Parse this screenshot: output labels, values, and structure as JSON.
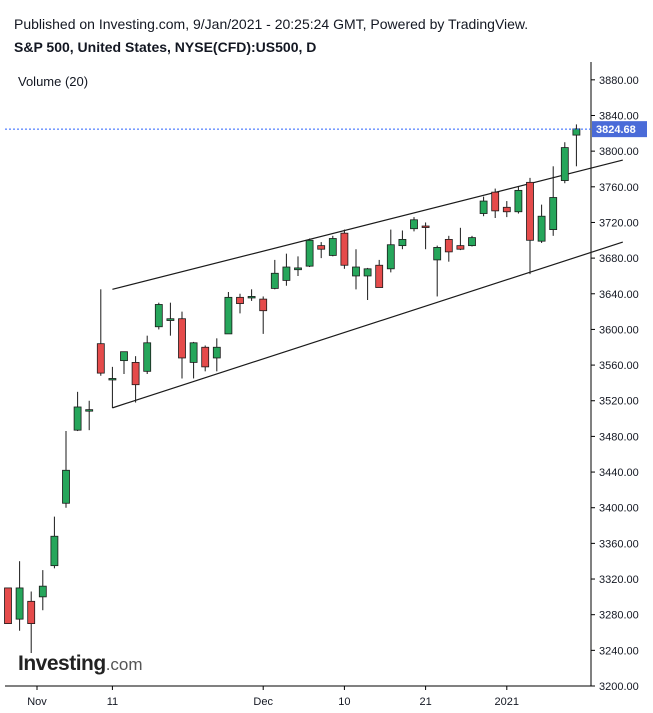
{
  "header": {
    "published": "Published on Investing.com, 9/Jan/2021 - 20:25:24 GMT, Powered by TradingView.",
    "instrument": "S&P 500, United States, NYSE(CFD):US500, D"
  },
  "logo": {
    "brand": "Investing",
    "suffix": ".com"
  },
  "colors": {
    "up": "#26a65b",
    "down": "#e54b4b",
    "last_price_tag": "#4a6bd8",
    "last_price_line": "#2962ff"
  },
  "chart_data": {
    "type": "candlestick",
    "indicator_label": "Volume (20)",
    "yaxis": {
      "range": [
        3200,
        3900
      ],
      "ticks": [
        3200,
        3240,
        3280,
        3320,
        3360,
        3400,
        3440,
        3480,
        3520,
        3560,
        3600,
        3640,
        3680,
        3720,
        3760,
        3800,
        3840,
        3880
      ],
      "tick_labels": [
        "3200.00",
        "3240.00",
        "3280.00",
        "3320.00",
        "3360.00",
        "3400.00",
        "3440.00",
        "3480.00",
        "3520.00",
        "3560.00",
        "3600.00",
        "3640.00",
        "3680.00",
        "3720.00",
        "3760.00",
        "3800.00",
        "3840.00",
        "3880.00"
      ]
    },
    "xaxis": {
      "labels": [
        {
          "text": "Nov",
          "index": 2.5
        },
        {
          "text": "11",
          "index": 9
        },
        {
          "text": "Dec",
          "index": 22
        },
        {
          "text": "10",
          "index": 29
        },
        {
          "text": "21",
          "index": 36
        },
        {
          "text": "2021",
          "index": 43
        }
      ]
    },
    "last_price": {
      "value": 3824.68,
      "label": "3824.68"
    },
    "candles": [
      {
        "o": 3310,
        "h": 3310,
        "l": 3270,
        "c": 3270
      },
      {
        "o": 3275,
        "h": 3340,
        "l": 3262,
        "c": 3310
      },
      {
        "o": 3295,
        "h": 3306,
        "l": 3237,
        "c": 3270
      },
      {
        "o": 3300,
        "h": 3330,
        "l": 3285,
        "c": 3312
      },
      {
        "o": 3335,
        "h": 3390,
        "l": 3332,
        "c": 3368
      },
      {
        "o": 3405,
        "h": 3486,
        "l": 3400,
        "c": 3442
      },
      {
        "o": 3487,
        "h": 3530,
        "l": 3486,
        "c": 3513
      },
      {
        "o": 3509,
        "h": 3520,
        "l": 3487,
        "c": 3510
      },
      {
        "o": 3584,
        "h": 3645,
        "l": 3548,
        "c": 3551
      },
      {
        "o": 3545,
        "h": 3558,
        "l": 3512,
        "c": 3545
      },
      {
        "o": 3565,
        "h": 3575,
        "l": 3550,
        "c": 3575
      },
      {
        "o": 3563,
        "h": 3570,
        "l": 3518,
        "c": 3538
      },
      {
        "o": 3553,
        "h": 3593,
        "l": 3550,
        "c": 3585
      },
      {
        "o": 3603,
        "h": 3630,
        "l": 3600,
        "c": 3628
      },
      {
        "o": 3610,
        "h": 3630,
        "l": 3593,
        "c": 3612
      },
      {
        "o": 3612,
        "h": 3620,
        "l": 3545,
        "c": 3568
      },
      {
        "o": 3563,
        "h": 3586,
        "l": 3545,
        "c": 3585
      },
      {
        "o": 3580,
        "h": 3582,
        "l": 3553,
        "c": 3558
      },
      {
        "o": 3568,
        "h": 3590,
        "l": 3553,
        "c": 3580
      },
      {
        "o": 3595,
        "h": 3642,
        "l": 3595,
        "c": 3636
      },
      {
        "o": 3636,
        "h": 3640,
        "l": 3618,
        "c": 3629
      },
      {
        "o": 3636,
        "h": 3645,
        "l": 3632,
        "c": 3637
      },
      {
        "o": 3634,
        "h": 3637,
        "l": 3595,
        "c": 3621
      },
      {
        "o": 3646,
        "h": 3678,
        "l": 3645,
        "c": 3663
      },
      {
        "o": 3655,
        "h": 3685,
        "l": 3649,
        "c": 3670
      },
      {
        "o": 3667,
        "h": 3682,
        "l": 3660,
        "c": 3669
      },
      {
        "o": 3671,
        "h": 3702,
        "l": 3670,
        "c": 3700
      },
      {
        "o": 3694,
        "h": 3698,
        "l": 3680,
        "c": 3690
      },
      {
        "o": 3683,
        "h": 3705,
        "l": 3682,
        "c": 3702
      },
      {
        "o": 3708,
        "h": 3712,
        "l": 3668,
        "c": 3672
      },
      {
        "o": 3660,
        "h": 3690,
        "l": 3645,
        "c": 3670
      },
      {
        "o": 3660,
        "h": 3669,
        "l": 3633,
        "c": 3668
      },
      {
        "o": 3672,
        "h": 3678,
        "l": 3648,
        "c": 3647
      },
      {
        "o": 3668,
        "h": 3712,
        "l": 3664,
        "c": 3695
      },
      {
        "o": 3694,
        "h": 3711,
        "l": 3690,
        "c": 3701
      },
      {
        "o": 3713,
        "h": 3726,
        "l": 3710,
        "c": 3723
      },
      {
        "o": 3716,
        "h": 3720,
        "l": 3690,
        "c": 3715
      },
      {
        "o": 3678,
        "h": 3694,
        "l": 3637,
        "c": 3692
      },
      {
        "o": 3701,
        "h": 3705,
        "l": 3676,
        "c": 3687
      },
      {
        "o": 3694,
        "h": 3714,
        "l": 3689,
        "c": 3690
      },
      {
        "o": 3694,
        "h": 3705,
        "l": 3693,
        "c": 3703
      },
      {
        "o": 3730,
        "h": 3749,
        "l": 3727,
        "c": 3744
      },
      {
        "o": 3754,
        "h": 3758,
        "l": 3725,
        "c": 3733
      },
      {
        "o": 3737,
        "h": 3744,
        "l": 3726,
        "c": 3732
      },
      {
        "o": 3732,
        "h": 3760,
        "l": 3730,
        "c": 3756
      },
      {
        "o": 3765,
        "h": 3770,
        "l": 3662,
        "c": 3700
      },
      {
        "o": 3699,
        "h": 3740,
        "l": 3697,
        "c": 3727
      },
      {
        "o": 3712,
        "h": 3783,
        "l": 3705,
        "c": 3748
      },
      {
        "o": 3767,
        "h": 3810,
        "l": 3764,
        "c": 3804
      },
      {
        "o": 3818,
        "h": 3830,
        "l": 3783,
        "c": 3825
      }
    ],
    "trendlines": [
      {
        "from": {
          "i": 9,
          "v": 3645
        },
        "to": {
          "i": 53,
          "v": 3790
        }
      },
      {
        "from": {
          "i": 9,
          "v": 3512
        },
        "to": {
          "i": 53,
          "v": 3698
        }
      }
    ]
  }
}
